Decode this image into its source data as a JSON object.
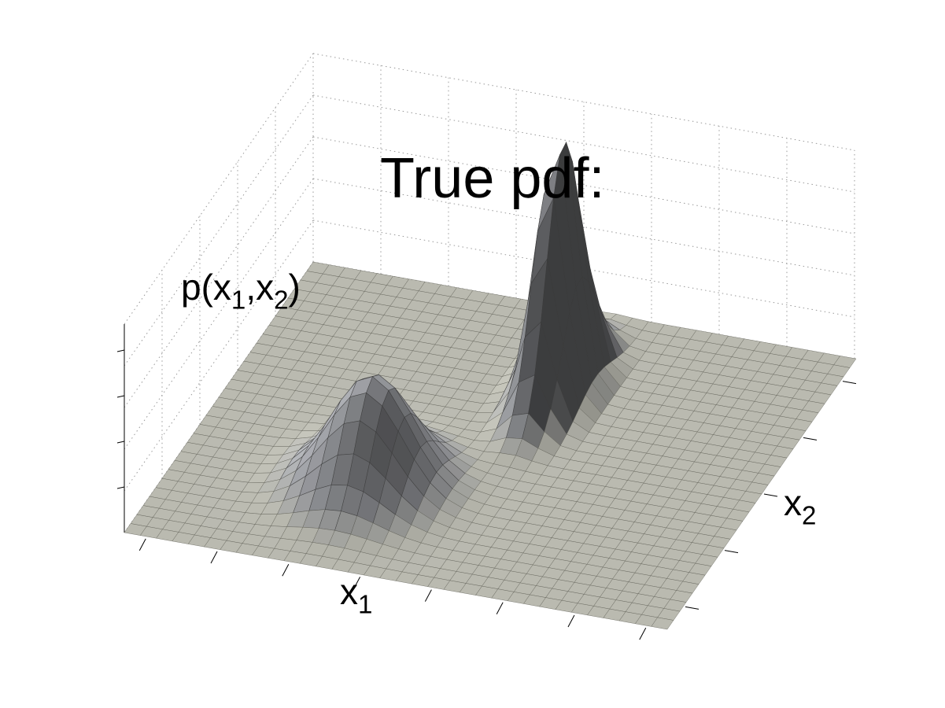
{
  "chart_data": {
    "type": "surface",
    "title": "True pdf:",
    "xlabel": {
      "base": "x",
      "sub": "1"
    },
    "ylabel": {
      "base": "x",
      "sub": "2"
    },
    "zlabel": {
      "prefix": "p(x",
      "sub1": "1",
      "mid": ",x",
      "sub2": "2",
      "suffix": ")"
    },
    "grid": true,
    "tick_labels_shown": false,
    "surface_color": "#e8e8dc",
    "edge_color": "#555555",
    "x_range": [
      0,
      1
    ],
    "y_range": [
      0,
      1
    ],
    "z_range": [
      0,
      1
    ],
    "components": [
      {
        "center": [
          0.35,
          0.3
        ],
        "spread": [
          0.07,
          0.09
        ],
        "peak": 0.42
      },
      {
        "center": [
          0.55,
          0.72
        ],
        "spread": [
          0.03,
          0.09
        ],
        "peak": 1.0
      }
    ]
  }
}
